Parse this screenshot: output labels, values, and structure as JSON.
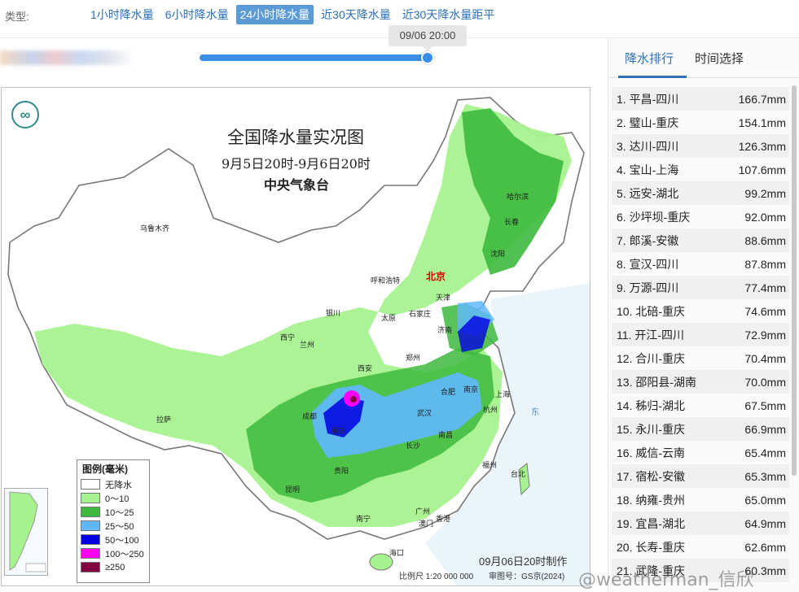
{
  "type_bar": {
    "label": "类型:",
    "tabs": [
      {
        "label": "1小时降水量",
        "active": false
      },
      {
        "label": "6小时降水量",
        "active": false
      },
      {
        "label": "24小时降水量",
        "active": true
      },
      {
        "label": "近30天降水量",
        "active": false
      },
      {
        "label": "近30天降水量距平",
        "active": false
      }
    ]
  },
  "timeline": {
    "current_time": "09/06 20:00",
    "progress": 1.0
  },
  "map": {
    "title": "全国降水量实况图",
    "period": "9月5日20时-9月6日20时",
    "organization": "中央气象台",
    "logo_icon": "cma-logo-icon",
    "made_note": "09月06日20时制作",
    "scale": "比例尺 1:20 000 000",
    "approval": "审图号：GS京(2024)",
    "cities": [
      {
        "name": "乌鲁木齐"
      },
      {
        "name": "哈尔滨"
      },
      {
        "name": "长春"
      },
      {
        "name": "沈阳"
      },
      {
        "name": "北京",
        "capital": true
      },
      {
        "name": "天津"
      },
      {
        "name": "呼和浩特"
      },
      {
        "name": "石家庄"
      },
      {
        "name": "太原"
      },
      {
        "name": "银川"
      },
      {
        "name": "西宁"
      },
      {
        "name": "兰州"
      },
      {
        "name": "济南"
      },
      {
        "name": "郑州"
      },
      {
        "name": "西安"
      },
      {
        "name": "合肥"
      },
      {
        "name": "南京"
      },
      {
        "name": "上海"
      },
      {
        "name": "杭州"
      },
      {
        "name": "武汉"
      },
      {
        "name": "成都"
      },
      {
        "name": "重庆"
      },
      {
        "name": "拉萨"
      },
      {
        "name": "长沙"
      },
      {
        "name": "南昌"
      },
      {
        "name": "贵阳"
      },
      {
        "name": "福州"
      },
      {
        "name": "台北"
      },
      {
        "name": "昆明"
      },
      {
        "name": "南宁"
      },
      {
        "name": "广州"
      },
      {
        "name": "香港"
      },
      {
        "name": "澳门"
      },
      {
        "name": "海口"
      },
      {
        "name": "东"
      }
    ],
    "legend": {
      "title": "图例(毫米)",
      "items": [
        {
          "label": "无降水",
          "color": "#ffffff"
        },
        {
          "label": "0～10",
          "color": "#a6f28f"
        },
        {
          "label": "10～25",
          "color": "#3dba3d"
        },
        {
          "label": "25～50",
          "color": "#61b8ff"
        },
        {
          "label": "50～100",
          "color": "#0000e1"
        },
        {
          "label": "100～250",
          "color": "#fa00fa"
        },
        {
          "label": "≥250",
          "color": "#800040"
        }
      ]
    }
  },
  "watermark": "@weatherman_信欣",
  "side_panel": {
    "tabs": [
      {
        "label": "降水排行",
        "active": true
      },
      {
        "label": "时间选择",
        "active": false
      }
    ],
    "ranking": [
      {
        "name": "1. 平昌-四川",
        "value": "166.7mm"
      },
      {
        "name": "2. 璧山-重庆",
        "value": "154.1mm"
      },
      {
        "name": "3. 达川-四川",
        "value": "126.3mm"
      },
      {
        "name": "4. 宝山-上海",
        "value": "107.6mm"
      },
      {
        "name": "5. 远安-湖北",
        "value": "99.2mm"
      },
      {
        "name": "6. 沙坪坝-重庆",
        "value": "92.0mm"
      },
      {
        "name": "7. 郎溪-安徽",
        "value": "88.6mm"
      },
      {
        "name": "8. 宣汉-四川",
        "value": "87.8mm"
      },
      {
        "name": "9. 万源-四川",
        "value": "77.4mm"
      },
      {
        "name": "10. 北碚-重庆",
        "value": "74.6mm"
      },
      {
        "name": "11. 开江-四川",
        "value": "72.9mm"
      },
      {
        "name": "12. 合川-重庆",
        "value": "70.4mm"
      },
      {
        "name": "13. 邵阳县-湖南",
        "value": "70.0mm"
      },
      {
        "name": "14. 秭归-湖北",
        "value": "67.5mm"
      },
      {
        "name": "15. 永川-重庆",
        "value": "66.9mm"
      },
      {
        "name": "16. 威信-云南",
        "value": "65.4mm"
      },
      {
        "name": "17. 宿松-安徽",
        "value": "65.3mm"
      },
      {
        "name": "18. 纳雍-贵州",
        "value": "65.0mm"
      },
      {
        "name": "19. 宜昌-湖北",
        "value": "64.9mm"
      },
      {
        "name": "20. 长寿-重庆",
        "value": "62.6mm"
      },
      {
        "name": "21. 武隆-重庆",
        "value": "60.3mm"
      }
    ]
  }
}
